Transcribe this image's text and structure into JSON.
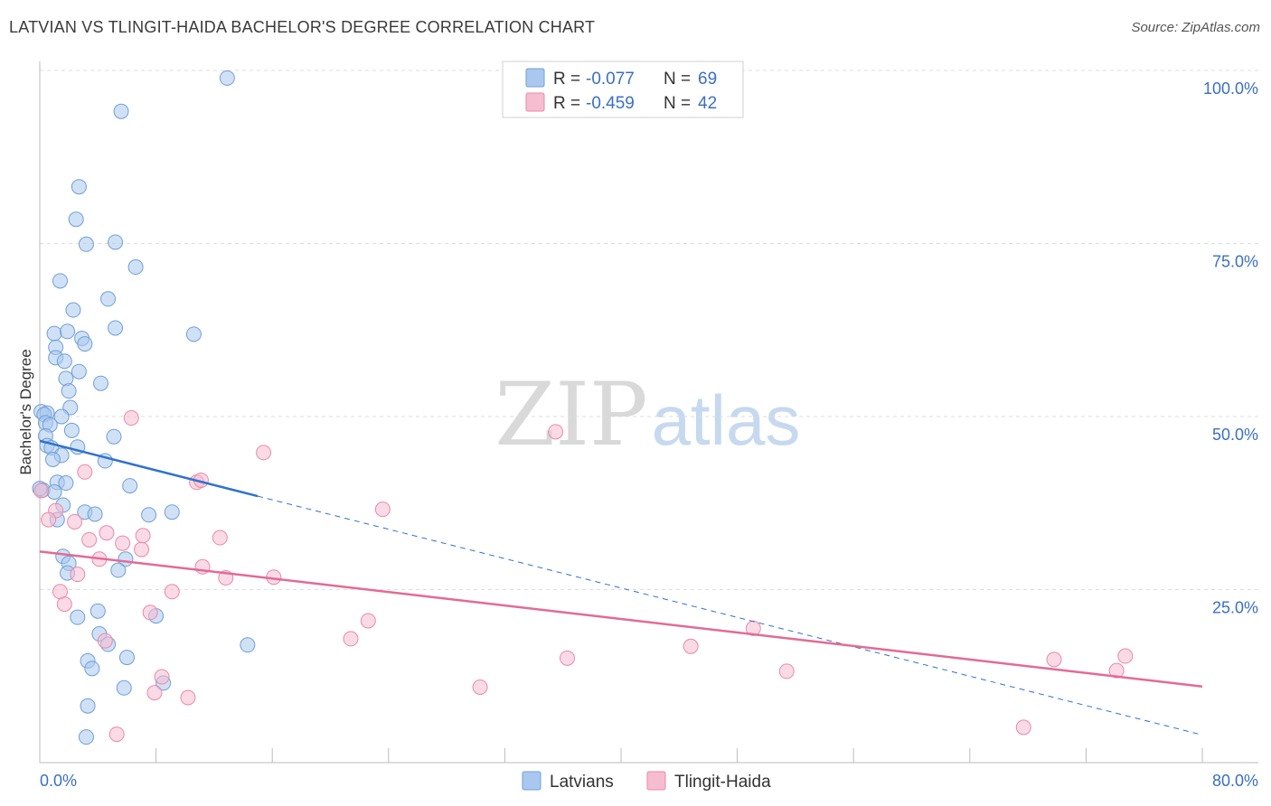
{
  "header": {
    "title": "LATVIAN VS TLINGIT-HAIDA BACHELOR'S DEGREE CORRELATION CHART",
    "source": "Source: ZipAtlas.com"
  },
  "colors": {
    "blue_fill": "#aac8ef",
    "blue_stroke": "#6f9fd8",
    "blue_line": "#2f72cf",
    "pink_fill": "#f6bcd0",
    "pink_stroke": "#e88aaa",
    "pink_line": "#e36b93",
    "grid": "#dddddd",
    "tick_text": "#3a6fc4"
  },
  "legend": {
    "r_label": "R =",
    "n_label": "N =",
    "series": [
      {
        "r": "-0.077",
        "n": "69"
      },
      {
        "r": "-0.459",
        "n": "42"
      }
    ]
  },
  "watermark": {
    "zip": "ZIP",
    "atlas": "atlas"
  },
  "chart_data": {
    "type": "scatter",
    "title": "LATVIAN VS TLINGIT-HAIDA BACHELOR'S DEGREE CORRELATION CHART",
    "xlabel": "",
    "ylabel": "Bachelor's Degree",
    "xlim": [
      0,
      80
    ],
    "ylim": [
      0,
      100
    ],
    "x_tick_labels": [
      "0.0%",
      "80.0%"
    ],
    "y_tick_labels": [
      "25.0%",
      "50.0%",
      "75.0%",
      "100.0%"
    ],
    "y_ticks": [
      25,
      50,
      75,
      100
    ],
    "x_minor_ticks": [
      0,
      8,
      16,
      24,
      32,
      40,
      48,
      56,
      64,
      72,
      80
    ],
    "grid": true,
    "legend_position": "bottom-center",
    "series": [
      {
        "name": "Latvians",
        "trend": {
          "x0": 0,
          "y0": 46.5,
          "x1": 15,
          "y1": 38.5,
          "dashed_to_x": 80,
          "dashed_to_y": 4
        },
        "points": [
          [
            12.9,
            98.9
          ],
          [
            5.6,
            94.1
          ],
          [
            2.7,
            83.2
          ],
          [
            2.5,
            78.5
          ],
          [
            3.2,
            74.9
          ],
          [
            5.2,
            75.2
          ],
          [
            6.6,
            71.6
          ],
          [
            1.4,
            69.6
          ],
          [
            4.7,
            67.0
          ],
          [
            2.3,
            65.4
          ],
          [
            1.0,
            62.0
          ],
          [
            5.2,
            62.8
          ],
          [
            10.6,
            61.9
          ],
          [
            2.9,
            61.3
          ],
          [
            3.1,
            60.5
          ],
          [
            1.9,
            62.3
          ],
          [
            1.1,
            60.0
          ],
          [
            1.1,
            58.5
          ],
          [
            1.7,
            58.0
          ],
          [
            2.7,
            56.5
          ],
          [
            1.8,
            55.5
          ],
          [
            4.2,
            54.8
          ],
          [
            2.0,
            53.7
          ],
          [
            2.1,
            51.3
          ],
          [
            0.1,
            50.7
          ],
          [
            0.5,
            50.5
          ],
          [
            0.3,
            50.3
          ],
          [
            1.5,
            50.0
          ],
          [
            0.4,
            49.1
          ],
          [
            0.7,
            48.8
          ],
          [
            2.2,
            48.0
          ],
          [
            0.4,
            47.2
          ],
          [
            5.1,
            47.1
          ],
          [
            0.5,
            45.8
          ],
          [
            0.8,
            45.5
          ],
          [
            2.6,
            45.6
          ],
          [
            1.5,
            44.4
          ],
          [
            0.9,
            43.8
          ],
          [
            4.5,
            43.6
          ],
          [
            1.2,
            40.5
          ],
          [
            1.8,
            40.4
          ],
          [
            6.2,
            40.0
          ],
          [
            0.2,
            39.4
          ],
          [
            1.0,
            39.1
          ],
          [
            1.6,
            37.2
          ],
          [
            3.1,
            36.2
          ],
          [
            7.5,
            35.8
          ],
          [
            9.1,
            36.2
          ],
          [
            3.8,
            35.9
          ],
          [
            1.2,
            35.1
          ],
          [
            1.6,
            29.8
          ],
          [
            2.0,
            28.8
          ],
          [
            5.9,
            29.4
          ],
          [
            1.9,
            27.4
          ],
          [
            5.4,
            27.8
          ],
          [
            4.0,
            21.9
          ],
          [
            2.6,
            21.0
          ],
          [
            8.0,
            21.2
          ],
          [
            4.1,
            18.6
          ],
          [
            4.7,
            17.1
          ],
          [
            14.3,
            17.0
          ],
          [
            6.0,
            15.2
          ],
          [
            3.3,
            14.7
          ],
          [
            3.6,
            13.6
          ],
          [
            8.5,
            11.5
          ],
          [
            5.8,
            10.8
          ],
          [
            3.3,
            8.2
          ],
          [
            3.2,
            3.7
          ],
          [
            0.0,
            39.6
          ]
        ]
      },
      {
        "name": "Tlingit-Haida",
        "trend": {
          "x0": 0,
          "y0": 30.5,
          "x1": 80,
          "y1": 11.0
        },
        "points": [
          [
            6.3,
            49.8
          ],
          [
            35.5,
            47.8
          ],
          [
            15.4,
            44.8
          ],
          [
            3.1,
            42.0
          ],
          [
            10.8,
            40.5
          ],
          [
            11.1,
            40.8
          ],
          [
            23.6,
            36.6
          ],
          [
            0.1,
            39.3
          ],
          [
            1.1,
            36.4
          ],
          [
            0.6,
            35.1
          ],
          [
            2.4,
            34.8
          ],
          [
            4.6,
            33.2
          ],
          [
            7.1,
            32.8
          ],
          [
            12.4,
            32.5
          ],
          [
            3.4,
            32.2
          ],
          [
            5.7,
            31.7
          ],
          [
            7.0,
            30.8
          ],
          [
            4.1,
            29.4
          ],
          [
            11.2,
            28.3
          ],
          [
            2.6,
            27.2
          ],
          [
            12.8,
            26.7
          ],
          [
            16.1,
            26.8
          ],
          [
            1.4,
            24.7
          ],
          [
            9.1,
            24.7
          ],
          [
            1.7,
            22.9
          ],
          [
            7.6,
            21.7
          ],
          [
            22.6,
            20.5
          ],
          [
            49.1,
            19.4
          ],
          [
            21.4,
            17.9
          ],
          [
            4.5,
            17.6
          ],
          [
            44.8,
            16.8
          ],
          [
            36.3,
            15.1
          ],
          [
            69.8,
            14.9
          ],
          [
            74.7,
            15.4
          ],
          [
            51.4,
            13.2
          ],
          [
            74.1,
            13.3
          ],
          [
            8.4,
            12.4
          ],
          [
            30.3,
            10.9
          ],
          [
            7.9,
            10.1
          ],
          [
            10.2,
            9.4
          ],
          [
            5.3,
            4.1
          ],
          [
            67.7,
            5.1
          ]
        ]
      }
    ]
  }
}
